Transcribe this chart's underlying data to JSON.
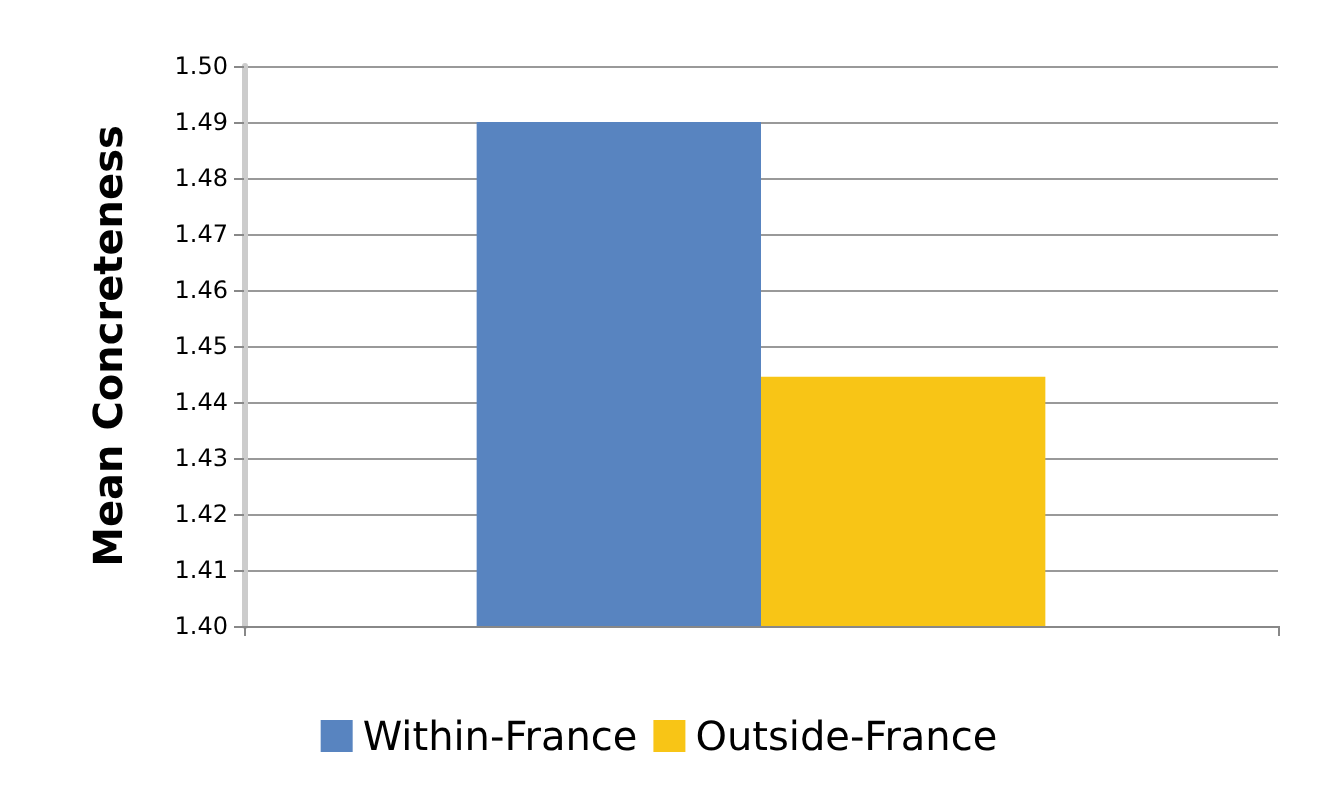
{
  "chart_data": {
    "type": "bar",
    "ylabel": "Mean Concreteness",
    "categories": [
      null
    ],
    "series": [
      {
        "name": "Within-France",
        "color": "#5884c0",
        "values": [
          1.49
        ]
      },
      {
        "name": "Outside-France",
        "color": "#f8c516",
        "values": [
          1.4445
        ]
      }
    ],
    "ylim": [
      1.4,
      1.5
    ],
    "yticks": [
      {
        "value": 1.4,
        "label": "1.40"
      },
      1.41,
      1.42,
      1.43,
      1.44,
      1.45,
      1.46,
      1.47,
      1.48,
      1.49,
      {
        "value": 1.5,
        "label": "1.50"
      }
    ],
    "grid": "y",
    "legend": "bottom"
  }
}
